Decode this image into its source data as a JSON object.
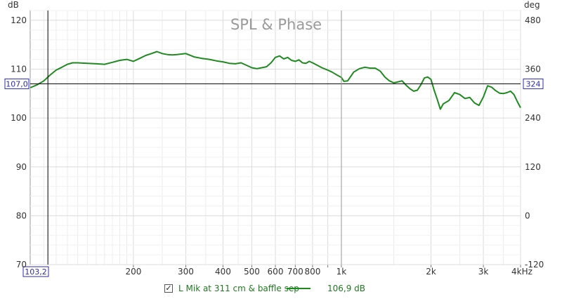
{
  "chart_data": {
    "type": "line",
    "title": "SPL & Phase",
    "x_unit": "kHz",
    "y_unit_left": "dB",
    "y_unit_right": "deg",
    "x_scale": "log",
    "xlim": [
      90,
      4000
    ],
    "ylim": [
      70,
      122
    ],
    "ylim_right": [
      -120,
      504
    ],
    "x_ticks": [
      {
        "v": 200,
        "label": "200"
      },
      {
        "v": 300,
        "label": "300"
      },
      {
        "v": 400,
        "label": "400"
      },
      {
        "v": 500,
        "label": "500"
      },
      {
        "v": 600,
        "label": "600"
      },
      {
        "v": 700,
        "label": "700"
      },
      {
        "v": 800,
        "label": "800"
      },
      {
        "v": 900,
        "label": ""
      },
      {
        "v": 1000,
        "label": "1k"
      },
      {
        "v": 2000,
        "label": "2k"
      },
      {
        "v": 3000,
        "label": "3k"
      },
      {
        "v": 4000,
        "label": "4k"
      }
    ],
    "y_ticks_left": [
      {
        "v": 70,
        "label": "70"
      },
      {
        "v": 80,
        "label": "80"
      },
      {
        "v": 90,
        "label": "90"
      },
      {
        "v": 100,
        "label": "100"
      },
      {
        "v": 110,
        "label": "110"
      },
      {
        "v": 120,
        "label": "120"
      }
    ],
    "y_ticks_right": [
      {
        "v": -120,
        "label": "-120"
      },
      {
        "v": 0,
        "label": "0"
      },
      {
        "v": 120,
        "label": "120"
      },
      {
        "v": 240,
        "label": "240"
      },
      {
        "v": 360,
        "label": "360"
      },
      {
        "v": 480,
        "label": "480"
      }
    ],
    "grid": true,
    "cursor": {
      "x_value": 103.2,
      "x_label": "103,2",
      "y_value": 107.0,
      "y_label": "107,0",
      "y_right_label": "324",
      "vline_freq": 1000
    },
    "series": [
      {
        "name": "L Mik at 311 cm & baffle sep",
        "color": "#1f8a1f",
        "readout": "106,9 dB",
        "x": [
          90,
          95,
          100,
          105,
          110,
          115,
          120,
          125,
          130,
          140,
          150,
          160,
          170,
          180,
          190,
          200,
          210,
          220,
          230,
          240,
          250,
          260,
          270,
          280,
          290,
          300,
          320,
          340,
          360,
          380,
          400,
          420,
          440,
          460,
          480,
          500,
          520,
          540,
          560,
          580,
          600,
          620,
          640,
          660,
          680,
          700,
          720,
          740,
          760,
          780,
          800,
          830,
          860,
          900,
          930,
          960,
          1000,
          1020,
          1050,
          1100,
          1150,
          1200,
          1250,
          1300,
          1350,
          1400,
          1450,
          1500,
          1550,
          1600,
          1650,
          1700,
          1750,
          1800,
          1850,
          1900,
          1950,
          2000,
          2050,
          2100,
          2150,
          2200,
          2300,
          2400,
          2500,
          2600,
          2700,
          2800,
          2900,
          3000,
          3100,
          3200,
          3300,
          3400,
          3500,
          3600,
          3700,
          3800,
          3900,
          4000
        ],
        "y": [
          106.2,
          106.8,
          107.6,
          108.8,
          109.8,
          110.4,
          111.0,
          111.3,
          111.3,
          111.2,
          111.1,
          111.0,
          111.4,
          111.8,
          112.0,
          111.6,
          112.2,
          112.8,
          113.2,
          113.6,
          113.2,
          113.0,
          112.9,
          113.0,
          113.1,
          113.2,
          112.5,
          112.2,
          112.0,
          111.7,
          111.5,
          111.2,
          111.1,
          111.3,
          110.8,
          110.3,
          110.1,
          110.3,
          110.5,
          111.3,
          112.4,
          112.7,
          112.1,
          112.4,
          111.8,
          111.6,
          111.9,
          111.3,
          111.2,
          111.6,
          111.3,
          110.8,
          110.3,
          109.8,
          109.4,
          108.9,
          108.3,
          107.5,
          107.6,
          109.4,
          110.1,
          110.4,
          110.2,
          110.2,
          109.6,
          108.4,
          107.6,
          107.2,
          107.4,
          107.6,
          106.7,
          106.0,
          105.5,
          105.7,
          106.8,
          108.2,
          108.4,
          107.9,
          105.7,
          103.8,
          101.8,
          102.9,
          103.6,
          105.2,
          104.8,
          104.0,
          104.2,
          103.1,
          102.6,
          104.3,
          106.6,
          106.3,
          105.6,
          105.1,
          105.0,
          105.2,
          105.5,
          104.8,
          103.4,
          102.1
        ]
      }
    ]
  }
}
